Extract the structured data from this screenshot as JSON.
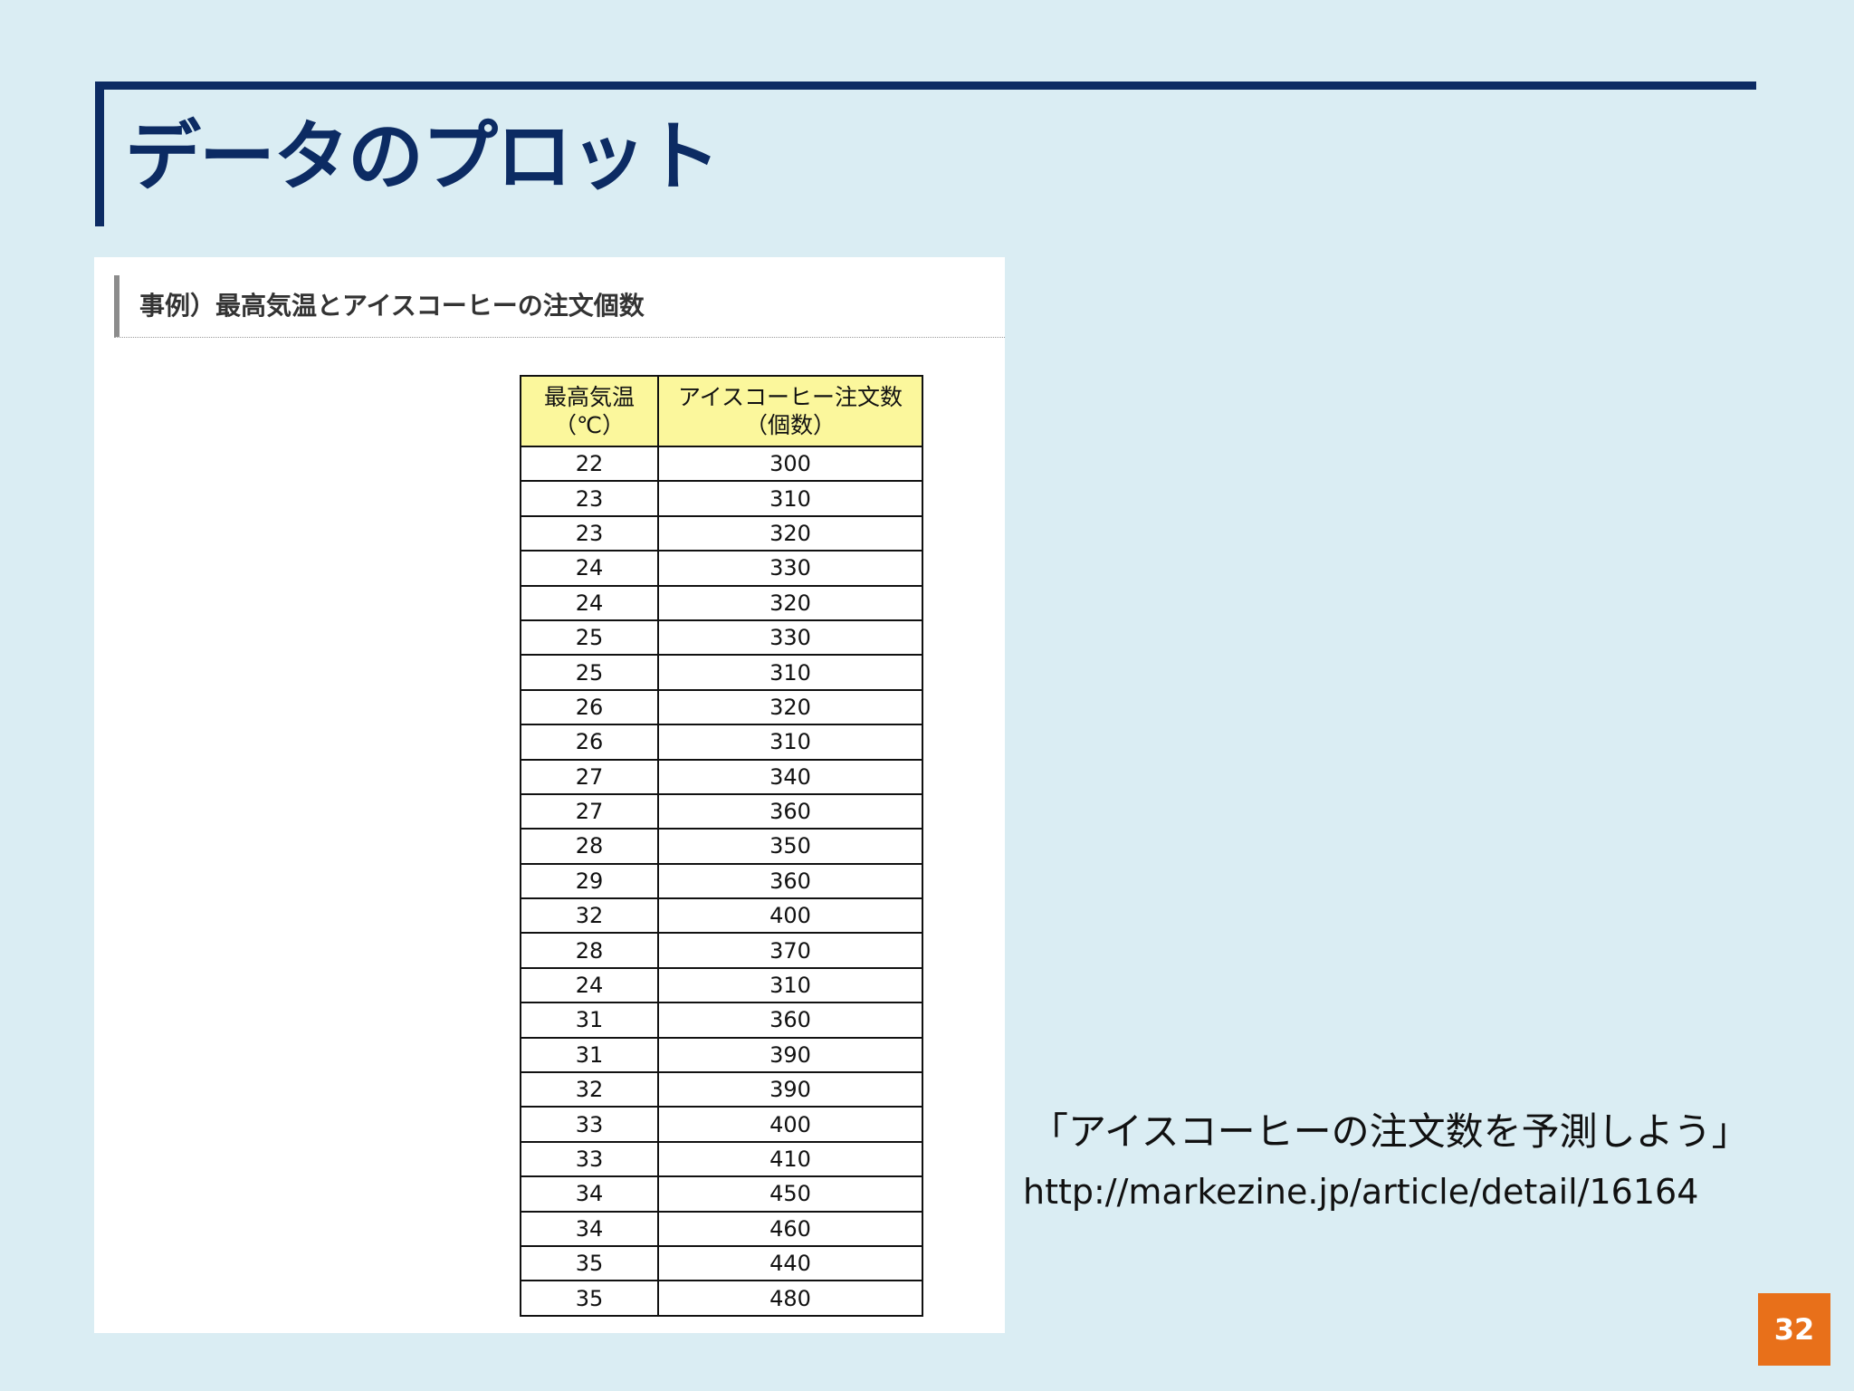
{
  "slide": {
    "title": "データのプロット",
    "page_number": "32"
  },
  "panel": {
    "heading": "事例）最高気温とアイスコーヒーの注文個数",
    "table": {
      "headers": [
        [
          "最高気温",
          "（℃）"
        ],
        [
          "アイスコーヒー注文数",
          "（個数）"
        ]
      ],
      "rows": [
        [
          "22",
          "300"
        ],
        [
          "23",
          "310"
        ],
        [
          "23",
          "320"
        ],
        [
          "24",
          "330"
        ],
        [
          "24",
          "320"
        ],
        [
          "25",
          "330"
        ],
        [
          "25",
          "310"
        ],
        [
          "26",
          "320"
        ],
        [
          "26",
          "310"
        ],
        [
          "27",
          "340"
        ],
        [
          "27",
          "360"
        ],
        [
          "28",
          "350"
        ],
        [
          "29",
          "360"
        ],
        [
          "32",
          "400"
        ],
        [
          "28",
          "370"
        ],
        [
          "24",
          "310"
        ],
        [
          "31",
          "360"
        ],
        [
          "31",
          "390"
        ],
        [
          "32",
          "390"
        ],
        [
          "33",
          "400"
        ],
        [
          "33",
          "410"
        ],
        [
          "34",
          "450"
        ],
        [
          "34",
          "460"
        ],
        [
          "35",
          "440"
        ],
        [
          "35",
          "480"
        ]
      ]
    }
  },
  "caption": "「アイスコーヒーの注文数を予測しよう」",
  "source_url": "http://markezine.jp/article/detail/16164",
  "colors": {
    "background": "#daedf3",
    "title_navy": "#0c2b63",
    "header_yellow": "#fbf79c",
    "page_badge_orange": "#e8701a"
  }
}
